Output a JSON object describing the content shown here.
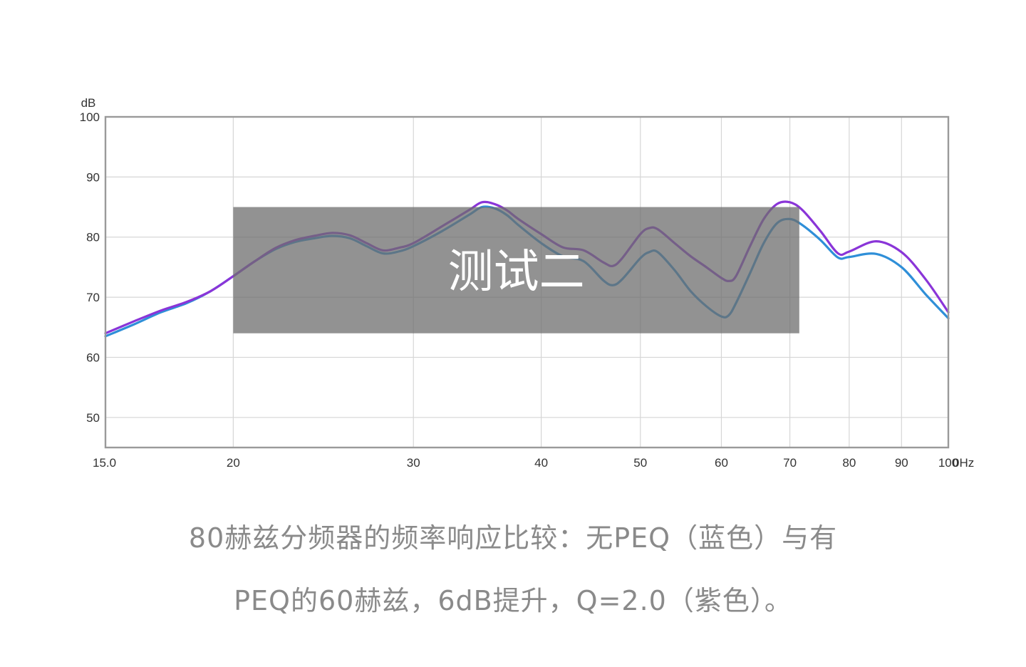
{
  "chart_data": {
    "type": "line",
    "ylabel_unit": "dB",
    "xlabel_unit": "0Hz",
    "x_scale": "log",
    "xlim": [
      15,
      100
    ],
    "ylim": [
      45,
      100
    ],
    "grid": true,
    "x_tick_labels": [
      "15.0",
      "20",
      "30",
      "40",
      "50",
      "60",
      "70",
      "80",
      "90",
      "100"
    ],
    "y_tick_labels": [
      "100",
      "90",
      "80",
      "70",
      "60",
      "50"
    ],
    "series": [
      {
        "color": "#2f8fd8",
        "x": [
          15,
          16,
          17,
          18,
          19,
          20,
          21,
          22,
          23,
          24,
          25,
          26,
          27,
          28,
          29,
          30,
          32,
          34,
          35,
          36,
          37,
          38,
          40,
          42,
          44,
          46,
          47,
          48,
          50,
          51,
          52,
          54,
          56,
          58,
          60,
          61,
          62,
          64,
          66,
          68,
          70,
          72,
          75,
          78,
          80,
          85,
          90,
          95,
          100
        ],
        "y": [
          63.5,
          65.5,
          67.5,
          69,
          71,
          73.5,
          76,
          78,
          79.2,
          79.8,
          80.2,
          79.8,
          78.5,
          77.3,
          77.6,
          78.5,
          81,
          83.7,
          85,
          84.8,
          83.7,
          82,
          79,
          76.8,
          76,
          72.8,
          72,
          73,
          76.5,
          77.5,
          77.5,
          74.5,
          71,
          68.5,
          66.8,
          67,
          69,
          74,
          79,
          82.3,
          83,
          82,
          79.5,
          76.6,
          76.7,
          77.2,
          75,
          70.5,
          66.5
        ]
      },
      {
        "color": "#8a35d8",
        "x": [
          15,
          16,
          17,
          18,
          19,
          20,
          21,
          22,
          23,
          24,
          25,
          26,
          27,
          28,
          29,
          30,
          32,
          34,
          35,
          36,
          37,
          38,
          40,
          42,
          44,
          46,
          47,
          48,
          50,
          51,
          52,
          54,
          56,
          58,
          60,
          61,
          62,
          64,
          66,
          68,
          70,
          72,
          75,
          78,
          80,
          85,
          90,
          95,
          100
        ],
        "y": [
          64,
          66,
          67.8,
          69.2,
          71,
          73.5,
          76,
          78.2,
          79.5,
          80.2,
          80.7,
          80.3,
          79,
          77.8,
          78.2,
          79,
          81.8,
          84.5,
          85.8,
          85.5,
          84.5,
          83,
          80.5,
          78.3,
          77.8,
          75.8,
          75.2,
          76.5,
          80.5,
          81.5,
          81.3,
          79,
          76.8,
          75,
          73.2,
          72.7,
          73.5,
          78.5,
          83,
          85.5,
          85.8,
          84.5,
          81,
          77.3,
          77.6,
          79.3,
          77.5,
          73,
          67.5
        ]
      }
    ]
  },
  "overlay": {
    "label": "测试二",
    "x_range": [
      20,
      71.5
    ],
    "y_range": [
      64,
      85
    ]
  },
  "caption": {
    "line1": "80赫兹分频器的频率响应比较：无PEQ（蓝色）与有",
    "line2": "PEQ的60赫兹，6dB提升，Q=2.0（紫色）。"
  }
}
